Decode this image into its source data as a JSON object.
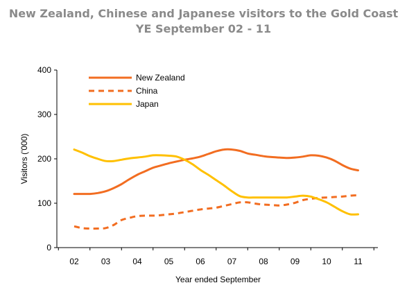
{
  "chart_data": {
    "type": "line",
    "title": "New Zealand, Chinese and Japanese visitors to the Gold Coast",
    "subtitle": "YE September 02 - 11",
    "xlabel": "Year ended September",
    "ylabel": "Visitors ('000)",
    "ylim": [
      0,
      400
    ],
    "yticks": [
      "0",
      "100",
      "200",
      "300",
      "400"
    ],
    "categories": [
      "02",
      "03",
      "04",
      "05",
      "06",
      "07",
      "08",
      "09",
      "10",
      "11"
    ],
    "grid": false,
    "legend_position": "top-left",
    "series": [
      {
        "name": "New Zealand",
        "color": "#f26d21",
        "style": "solid",
        "x": [
          0,
          0.5,
          1,
          1.5,
          2,
          2.5,
          3,
          3.5,
          4,
          4.5,
          5,
          5.5,
          6,
          6.5,
          7,
          7.5,
          8,
          8.5,
          9,
          9.5,
          10,
          10.5,
          11,
          11.5,
          12,
          12.5,
          13,
          13.5,
          14,
          14.5,
          15,
          15.5,
          16,
          16.5,
          17,
          17.5,
          18
        ],
        "values": [
          121,
          121,
          121,
          123,
          127,
          134,
          143,
          154,
          164,
          172,
          180,
          185,
          190,
          194,
          198,
          201,
          205,
          211,
          217,
          221,
          221,
          218,
          212,
          209,
          206,
          204,
          203,
          202,
          203,
          205,
          208,
          207,
          203,
          196,
          186,
          178,
          174
        ]
      },
      {
        "name": "China",
        "color": "#f26d21",
        "style": "dashed",
        "x": [
          0,
          0.5,
          1,
          1.5,
          2,
          2.5,
          3,
          3.5,
          4,
          4.5,
          5,
          5.5,
          6,
          6.5,
          7,
          7.5,
          8,
          8.5,
          9,
          9.5,
          10,
          10.5,
          11,
          11.5,
          12,
          12.5,
          13,
          13.5,
          14,
          14.5,
          15,
          15.5,
          16,
          16.5,
          17,
          17.5,
          18
        ],
        "values": [
          48,
          44,
          43,
          43,
          44,
          51,
          62,
          67,
          71,
          72,
          72,
          73,
          75,
          77,
          80,
          83,
          86,
          88,
          90,
          94,
          98,
          102,
          102,
          99,
          97,
          96,
          95,
          97,
          101,
          107,
          110,
          112,
          113,
          114,
          115,
          117,
          118
        ]
      },
      {
        "name": "Japan",
        "color": "#ffc000",
        "style": "solid",
        "x": [
          0,
          0.5,
          1,
          1.5,
          2,
          2.5,
          3,
          3.5,
          4,
          4.5,
          5,
          5.5,
          6,
          6.5,
          7,
          7.5,
          8,
          8.5,
          9,
          9.5,
          10,
          10.5,
          11,
          11.5,
          12,
          12.5,
          13,
          13.5,
          14,
          14.5,
          15,
          15.5,
          16,
          16.5,
          17,
          17.5,
          18
        ],
        "values": [
          221,
          214,
          206,
          200,
          195,
          195,
          198,
          201,
          203,
          205,
          208,
          208,
          207,
          205,
          198,
          188,
          175,
          164,
          152,
          140,
          127,
          116,
          113,
          113,
          113,
          113,
          113,
          113,
          115,
          117,
          115,
          109,
          102,
          92,
          82,
          75,
          75
        ]
      }
    ]
  }
}
